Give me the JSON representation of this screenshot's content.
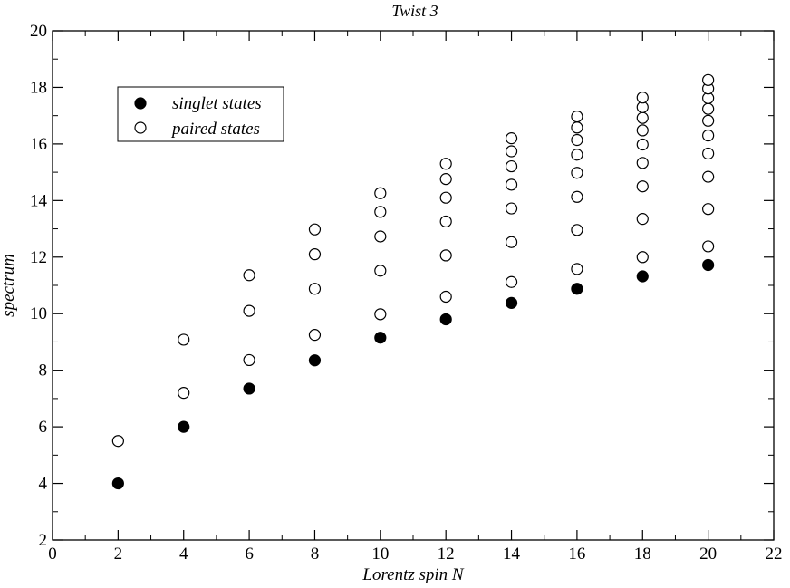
{
  "chart_data": {
    "type": "scatter",
    "title": "Twist 3",
    "xlabel": "Lorentz spin N",
    "ylabel": "spectrum",
    "xlim": [
      0,
      22
    ],
    "ylim": [
      2,
      20
    ],
    "x_ticks": [
      0,
      2,
      4,
      6,
      8,
      10,
      12,
      14,
      16,
      18,
      20,
      22
    ],
    "y_ticks": [
      2,
      4,
      6,
      8,
      10,
      12,
      14,
      16,
      18,
      20
    ],
    "x_tick_labels": [
      "0",
      "2",
      "4",
      "6",
      "8",
      "10",
      "12",
      "14",
      "16",
      "18",
      "20",
      "22"
    ],
    "y_tick_labels": [
      "2",
      "4",
      "6",
      "8",
      "10",
      "12",
      "14",
      "16",
      "18",
      "20"
    ],
    "grid": false,
    "legend_position": "top-left",
    "series": [
      {
        "name": "singlet states",
        "marker": "filled-circle",
        "points": [
          [
            2,
            4.0
          ],
          [
            4,
            6.0
          ],
          [
            6,
            7.35
          ],
          [
            8,
            8.35
          ],
          [
            10,
            9.15
          ],
          [
            12,
            9.8
          ],
          [
            14,
            10.38
          ],
          [
            16,
            10.88
          ],
          [
            18,
            11.32
          ],
          [
            20,
            11.72
          ]
        ]
      },
      {
        "name": "paired states",
        "marker": "open-circle",
        "points": [
          [
            2,
            5.5
          ],
          [
            4,
            7.2
          ],
          [
            4,
            9.08
          ],
          [
            6,
            8.36
          ],
          [
            6,
            10.1
          ],
          [
            6,
            11.36
          ],
          [
            8,
            9.25
          ],
          [
            8,
            10.88
          ],
          [
            8,
            12.1
          ],
          [
            8,
            12.98
          ],
          [
            10,
            9.98
          ],
          [
            10,
            11.52
          ],
          [
            10,
            12.73
          ],
          [
            10,
            13.6
          ],
          [
            10,
            14.26
          ],
          [
            12,
            10.6
          ],
          [
            12,
            12.06
          ],
          [
            12,
            13.26
          ],
          [
            12,
            14.1
          ],
          [
            12,
            14.76
          ],
          [
            12,
            15.3
          ],
          [
            14,
            11.12
          ],
          [
            14,
            12.53
          ],
          [
            14,
            13.72
          ],
          [
            14,
            14.56
          ],
          [
            14,
            15.21
          ],
          [
            14,
            15.74
          ],
          [
            14,
            16.2
          ],
          [
            16,
            11.58
          ],
          [
            16,
            12.96
          ],
          [
            16,
            14.13
          ],
          [
            16,
            14.98
          ],
          [
            16,
            15.62
          ],
          [
            16,
            16.14
          ],
          [
            16,
            16.58
          ],
          [
            16,
            16.97
          ],
          [
            18,
            12.0
          ],
          [
            18,
            13.35
          ],
          [
            18,
            14.5
          ],
          [
            18,
            15.33
          ],
          [
            18,
            15.98
          ],
          [
            18,
            16.48
          ],
          [
            18,
            16.92
          ],
          [
            18,
            17.3
          ],
          [
            18,
            17.64
          ],
          [
            20,
            12.38
          ],
          [
            20,
            13.7
          ],
          [
            20,
            14.84
          ],
          [
            20,
            15.66
          ],
          [
            20,
            16.3
          ],
          [
            20,
            16.82
          ],
          [
            20,
            17.24
          ],
          [
            20,
            17.62
          ],
          [
            20,
            17.96
          ],
          [
            20,
            18.26
          ]
        ]
      }
    ]
  }
}
